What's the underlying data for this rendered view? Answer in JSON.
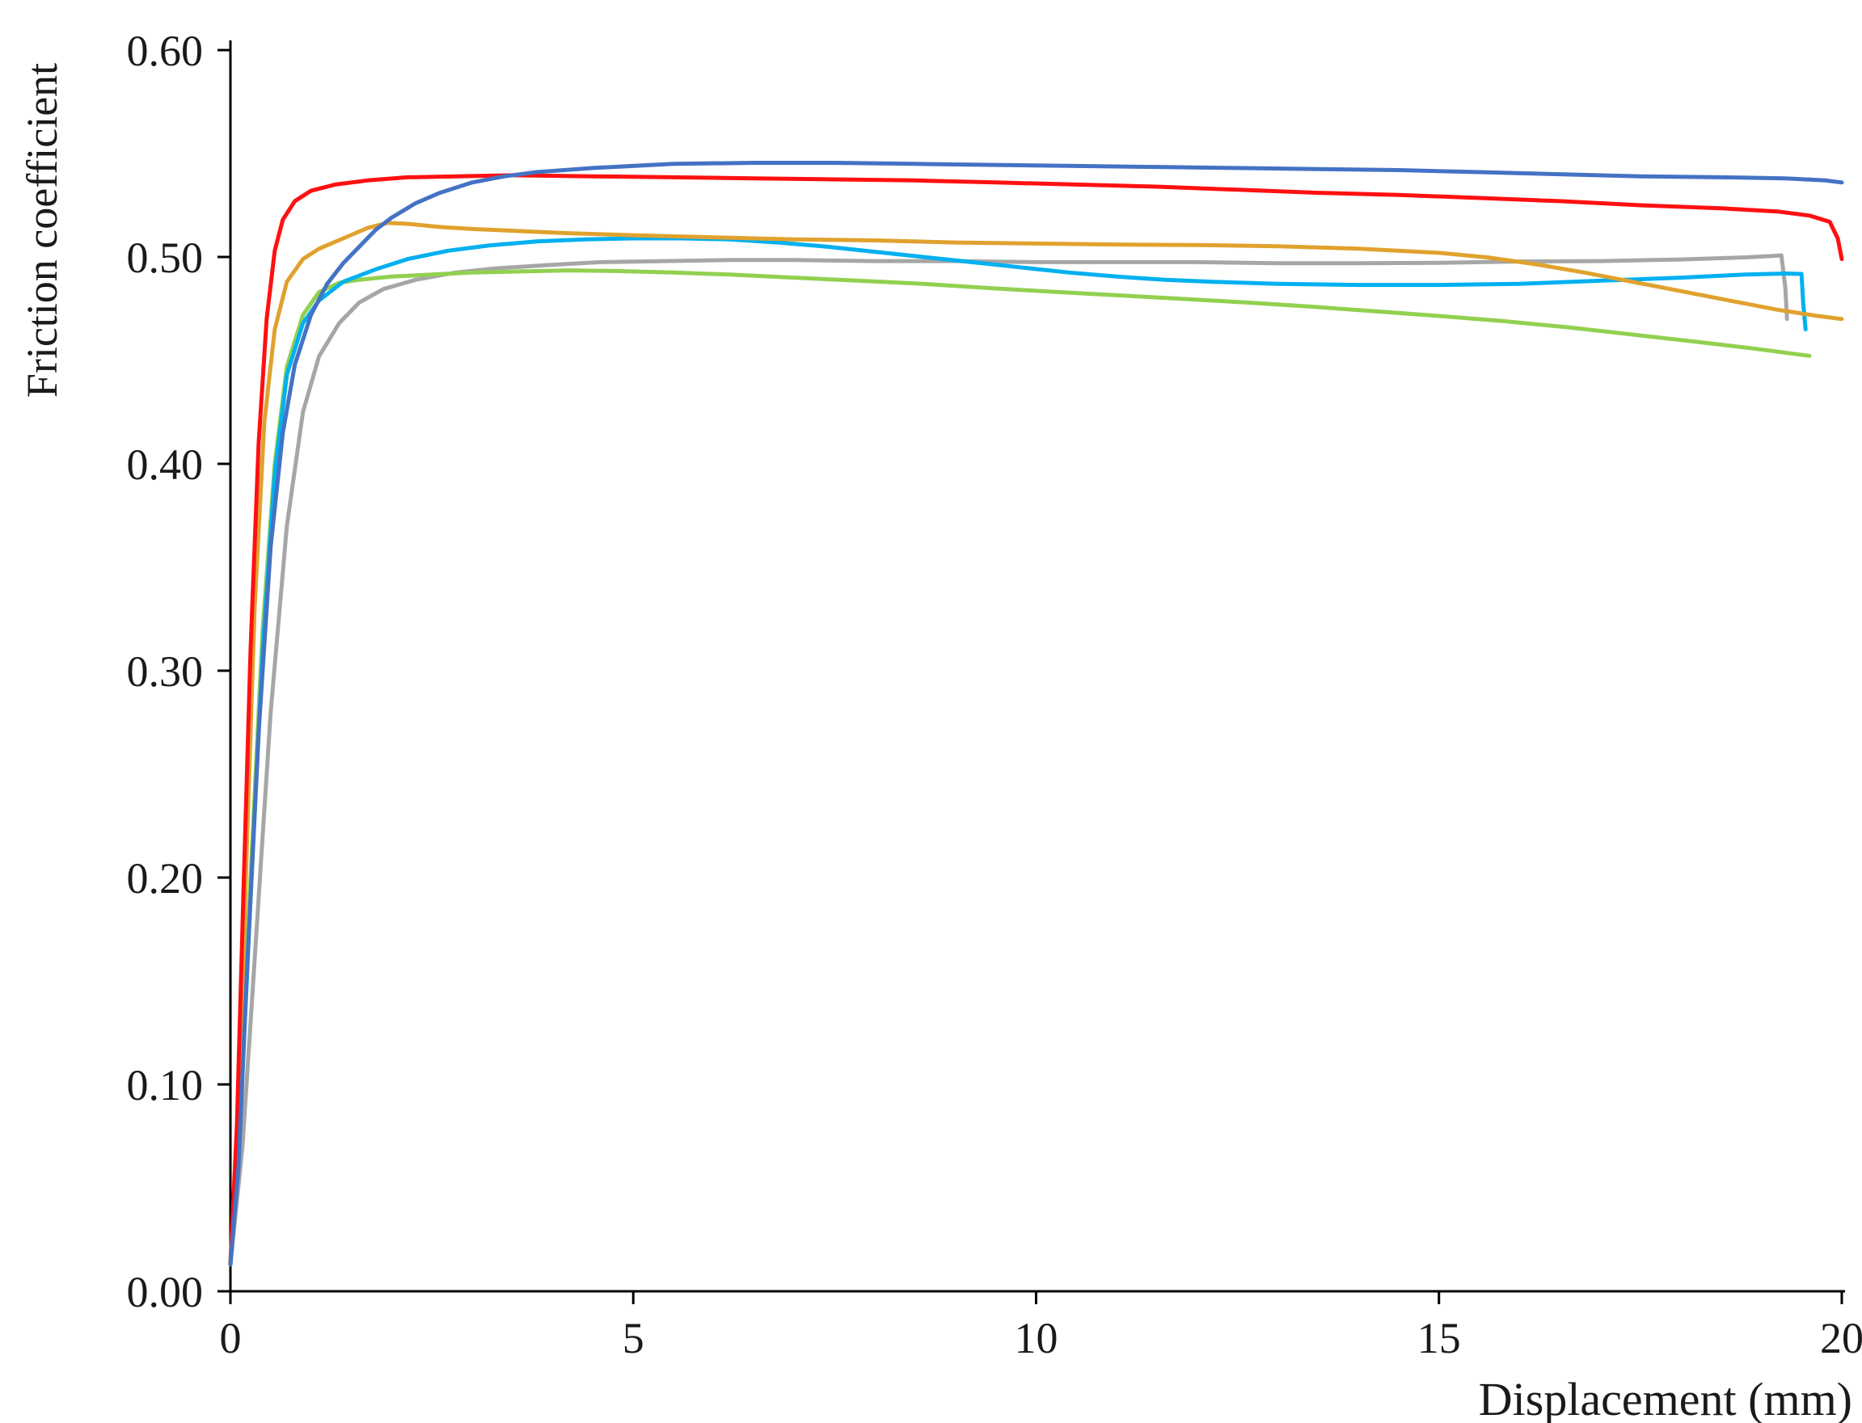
{
  "chart_data": {
    "type": "line",
    "title": "",
    "xlabel": "Displacement (mm)",
    "ylabel": "Friction coefficient",
    "xlim": [
      0,
      20
    ],
    "ylim": [
      0,
      0.6
    ],
    "grid": false,
    "legend": "none",
    "x_ticks": [
      0,
      5,
      10,
      15,
      20
    ],
    "x_tick_labels": [
      "0",
      "5",
      "10",
      "15",
      "20"
    ],
    "y_ticks": [
      0,
      0.1,
      0.2,
      0.3,
      0.4,
      0.5,
      0.6
    ],
    "y_tick_labels": [
      "0.00",
      "0.10",
      "0.20",
      "0.30",
      "0.40",
      "0.50",
      "0.60"
    ],
    "axis_color": "#000000",
    "text_color": "#1a1a1a",
    "series": [
      {
        "name": "gray",
        "color": "#a6a6a6",
        "points": [
          [
            0,
            0.013
          ],
          [
            0.15,
            0.07
          ],
          [
            0.3,
            0.16
          ],
          [
            0.5,
            0.28
          ],
          [
            0.7,
            0.37
          ],
          [
            0.9,
            0.425
          ],
          [
            1.1,
            0.452
          ],
          [
            1.35,
            0.468
          ],
          [
            1.6,
            0.478
          ],
          [
            1.9,
            0.4845
          ],
          [
            2.3,
            0.489
          ],
          [
            2.8,
            0.4925
          ],
          [
            3.3,
            0.4945
          ],
          [
            3.9,
            0.496
          ],
          [
            4.6,
            0.4975
          ],
          [
            5.4,
            0.498
          ],
          [
            6.2,
            0.4985
          ],
          [
            7.0,
            0.4985
          ],
          [
            8.0,
            0.498
          ],
          [
            9.0,
            0.498
          ],
          [
            10.0,
            0.4975
          ],
          [
            11.0,
            0.4975
          ],
          [
            12.0,
            0.4975
          ],
          [
            13.0,
            0.497
          ],
          [
            14.0,
            0.497
          ],
          [
            15.0,
            0.4972
          ],
          [
            16.0,
            0.4978
          ],
          [
            17.0,
            0.498
          ],
          [
            18.0,
            0.4988
          ],
          [
            18.8,
            0.4998
          ],
          [
            19.15,
            0.5005
          ],
          [
            19.25,
            0.5008
          ],
          [
            19.3,
            0.485
          ],
          [
            19.32,
            0.47
          ]
        ]
      },
      {
        "name": "green",
        "color": "#92d050",
        "points": [
          [
            0,
            0.013
          ],
          [
            0.12,
            0.09
          ],
          [
            0.25,
            0.2
          ],
          [
            0.4,
            0.32
          ],
          [
            0.55,
            0.4
          ],
          [
            0.7,
            0.447
          ],
          [
            0.9,
            0.472
          ],
          [
            1.1,
            0.483
          ],
          [
            1.35,
            0.4875
          ],
          [
            1.6,
            0.489
          ],
          [
            2.0,
            0.4905
          ],
          [
            2.5,
            0.4915
          ],
          [
            3.0,
            0.4925
          ],
          [
            3.6,
            0.493
          ],
          [
            4.2,
            0.4935
          ],
          [
            4.8,
            0.4932
          ],
          [
            5.5,
            0.4925
          ],
          [
            6.2,
            0.4915
          ],
          [
            7.0,
            0.49
          ],
          [
            7.8,
            0.4885
          ],
          [
            8.6,
            0.487
          ],
          [
            9.4,
            0.485
          ],
          [
            10.2,
            0.4832
          ],
          [
            11.0,
            0.4815
          ],
          [
            11.8,
            0.4798
          ],
          [
            12.6,
            0.478
          ],
          [
            13.4,
            0.476
          ],
          [
            14.2,
            0.4738
          ],
          [
            15.0,
            0.4715
          ],
          [
            15.8,
            0.469
          ],
          [
            16.6,
            0.466
          ],
          [
            17.4,
            0.4625
          ],
          [
            18.2,
            0.459
          ],
          [
            18.9,
            0.4558
          ],
          [
            19.4,
            0.4532
          ],
          [
            19.6,
            0.4522
          ]
        ]
      },
      {
        "name": "cyan",
        "color": "#00b0f0",
        "points": [
          [
            0,
            0.013
          ],
          [
            0.12,
            0.08
          ],
          [
            0.25,
            0.19
          ],
          [
            0.4,
            0.31
          ],
          [
            0.55,
            0.395
          ],
          [
            0.7,
            0.443
          ],
          [
            0.9,
            0.468
          ],
          [
            1.1,
            0.479
          ],
          [
            1.4,
            0.488
          ],
          [
            1.8,
            0.494
          ],
          [
            2.2,
            0.499
          ],
          [
            2.7,
            0.503
          ],
          [
            3.2,
            0.5055
          ],
          [
            3.8,
            0.5075
          ],
          [
            4.4,
            0.5085
          ],
          [
            5.0,
            0.509
          ],
          [
            5.6,
            0.509
          ],
          [
            6.2,
            0.5085
          ],
          [
            6.8,
            0.507
          ],
          [
            7.4,
            0.505
          ],
          [
            8.0,
            0.5025
          ],
          [
            8.6,
            0.5
          ],
          [
            9.2,
            0.4975
          ],
          [
            9.8,
            0.495
          ],
          [
            10.4,
            0.4925
          ],
          [
            11.0,
            0.4905
          ],
          [
            11.6,
            0.489
          ],
          [
            12.2,
            0.488
          ],
          [
            13.0,
            0.487
          ],
          [
            14.0,
            0.4865
          ],
          [
            15.0,
            0.4865
          ],
          [
            16.0,
            0.487
          ],
          [
            17.0,
            0.4885
          ],
          [
            18.0,
            0.49
          ],
          [
            18.8,
            0.4915
          ],
          [
            19.3,
            0.492
          ],
          [
            19.5,
            0.4918
          ],
          [
            19.52,
            0.478
          ],
          [
            19.55,
            0.465
          ]
        ]
      },
      {
        "name": "orange",
        "color": "#e0a22e",
        "points": [
          [
            0,
            0.013
          ],
          [
            0.1,
            0.09
          ],
          [
            0.2,
            0.21
          ],
          [
            0.3,
            0.33
          ],
          [
            0.42,
            0.42
          ],
          [
            0.55,
            0.465
          ],
          [
            0.7,
            0.488
          ],
          [
            0.9,
            0.499
          ],
          [
            1.1,
            0.504
          ],
          [
            1.4,
            0.509
          ],
          [
            1.7,
            0.514
          ],
          [
            1.95,
            0.5165
          ],
          [
            2.2,
            0.516
          ],
          [
            2.6,
            0.5145
          ],
          [
            3.0,
            0.5135
          ],
          [
            3.6,
            0.5125
          ],
          [
            4.2,
            0.5115
          ],
          [
            5.0,
            0.5105
          ],
          [
            6.0,
            0.5095
          ],
          [
            7.0,
            0.5085
          ],
          [
            8.0,
            0.508
          ],
          [
            9.0,
            0.507
          ],
          [
            10.0,
            0.5065
          ],
          [
            11.0,
            0.506
          ],
          [
            12.0,
            0.5058
          ],
          [
            13.0,
            0.5052
          ],
          [
            14.0,
            0.504
          ],
          [
            15.0,
            0.502
          ],
          [
            15.6,
            0.4998
          ],
          [
            16.2,
            0.4965
          ],
          [
            16.8,
            0.4925
          ],
          [
            17.4,
            0.488
          ],
          [
            18.0,
            0.4835
          ],
          [
            18.6,
            0.479
          ],
          [
            19.2,
            0.4745
          ],
          [
            19.7,
            0.4715
          ],
          [
            20,
            0.47
          ]
        ]
      },
      {
        "name": "red",
        "color": "#ff1011",
        "points": [
          [
            0,
            0.013
          ],
          [
            0.08,
            0.08
          ],
          [
            0.16,
            0.19
          ],
          [
            0.25,
            0.31
          ],
          [
            0.35,
            0.41
          ],
          [
            0.45,
            0.47
          ],
          [
            0.55,
            0.503
          ],
          [
            0.65,
            0.518
          ],
          [
            0.8,
            0.527
          ],
          [
            1.0,
            0.532
          ],
          [
            1.3,
            0.535
          ],
          [
            1.7,
            0.537
          ],
          [
            2.2,
            0.5385
          ],
          [
            2.8,
            0.539
          ],
          [
            3.5,
            0.5395
          ],
          [
            4.5,
            0.539
          ],
          [
            5.5,
            0.5385
          ],
          [
            6.5,
            0.538
          ],
          [
            7.5,
            0.5375
          ],
          [
            8.5,
            0.537
          ],
          [
            9.5,
            0.536
          ],
          [
            10.5,
            0.535
          ],
          [
            11.5,
            0.534
          ],
          [
            12.5,
            0.5325
          ],
          [
            13.5,
            0.531
          ],
          [
            14.5,
            0.53
          ],
          [
            15.5,
            0.5285
          ],
          [
            16.5,
            0.527
          ],
          [
            17.5,
            0.525
          ],
          [
            18.5,
            0.5235
          ],
          [
            19.2,
            0.522
          ],
          [
            19.6,
            0.52
          ],
          [
            19.85,
            0.517
          ],
          [
            19.95,
            0.509
          ],
          [
            20,
            0.499
          ]
        ]
      },
      {
        "name": "blue",
        "color": "#4472c4",
        "points": [
          [
            0,
            0.013
          ],
          [
            0.1,
            0.06
          ],
          [
            0.2,
            0.15
          ],
          [
            0.35,
            0.27
          ],
          [
            0.5,
            0.36
          ],
          [
            0.65,
            0.415
          ],
          [
            0.8,
            0.448
          ],
          [
            1.0,
            0.472
          ],
          [
            1.2,
            0.487
          ],
          [
            1.4,
            0.497
          ],
          [
            1.6,
            0.505
          ],
          [
            1.8,
            0.513
          ],
          [
            2.0,
            0.519
          ],
          [
            2.3,
            0.526
          ],
          [
            2.6,
            0.531
          ],
          [
            3.0,
            0.536
          ],
          [
            3.4,
            0.539
          ],
          [
            3.8,
            0.541
          ],
          [
            4.5,
            0.543
          ],
          [
            5.5,
            0.545
          ],
          [
            6.5,
            0.5455
          ],
          [
            7.5,
            0.5455
          ],
          [
            8.5,
            0.545
          ],
          [
            9.5,
            0.5445
          ],
          [
            10.5,
            0.544
          ],
          [
            11.5,
            0.5435
          ],
          [
            12.5,
            0.543
          ],
          [
            13.5,
            0.5425
          ],
          [
            14.5,
            0.542
          ],
          [
            15.5,
            0.541
          ],
          [
            16.5,
            0.54
          ],
          [
            17.5,
            0.539
          ],
          [
            18.5,
            0.5385
          ],
          [
            19.3,
            0.538
          ],
          [
            19.8,
            0.537
          ],
          [
            20,
            0.536
          ]
        ]
      }
    ]
  }
}
